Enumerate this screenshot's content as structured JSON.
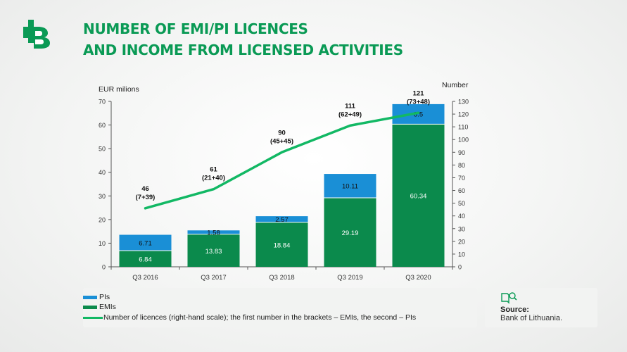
{
  "header": {
    "title_line1": "NUMBER OF EMI/PI LICENCES",
    "title_line2": "AND INCOME FROM LICENSED ACTIVITIES"
  },
  "colors": {
    "pis": "#1a8fd6",
    "emis": "#0b8a4c",
    "line": "#12b864",
    "title": "#0a9a55"
  },
  "chart_data": {
    "type": "bar",
    "stacked": true,
    "categories": [
      "Q3 2016",
      "Q3 2017",
      "Q3 2018",
      "Q3 2019",
      "Q3 2020"
    ],
    "series": [
      {
        "name": "EMIs",
        "axis": "left",
        "values": [
          6.84,
          13.83,
          18.84,
          29.19,
          60.34
        ],
        "labels": [
          "6.84",
          "13.83",
          "18.84",
          "29.19",
          "60.34"
        ]
      },
      {
        "name": "PIs",
        "axis": "left",
        "values": [
          6.71,
          1.58,
          2.57,
          10.11,
          8.5
        ],
        "labels": [
          "6.71",
          "1.58",
          "2.57",
          "10.11",
          "8.5"
        ]
      },
      {
        "name": "Number of licences (right-hand scale); the first number in the brackets – EMIs, the second – PIs",
        "type": "line",
        "axis": "right",
        "values": [
          46,
          61,
          90,
          111,
          121
        ],
        "labels": [
          "46",
          "61",
          "90",
          "111",
          "121"
        ],
        "sublabels": [
          "(7+39)",
          "(21+40)",
          "(45+45)",
          "(62+49)",
          "(73+48)"
        ]
      }
    ],
    "ylabel_left": "EUR milions",
    "ylabel_right": "Number",
    "ylim_left": [
      0,
      70
    ],
    "yticks_left": [
      0,
      10,
      20,
      30,
      40,
      50,
      60,
      70
    ],
    "ylim_right": [
      0,
      130
    ],
    "yticks_right": [
      0,
      10,
      20,
      30,
      40,
      50,
      60,
      70,
      80,
      90,
      100,
      110,
      120,
      130
    ],
    "grid": false,
    "legend_placement": "bottom-left"
  },
  "legend": {
    "pis": "PIs",
    "emis": "EMIs",
    "line": "Number of licences (right-hand scale); the first number in the brackets – EMIs, the second – PIs"
  },
  "source": {
    "label": "Source:",
    "text": "Bank of Lithuania."
  }
}
